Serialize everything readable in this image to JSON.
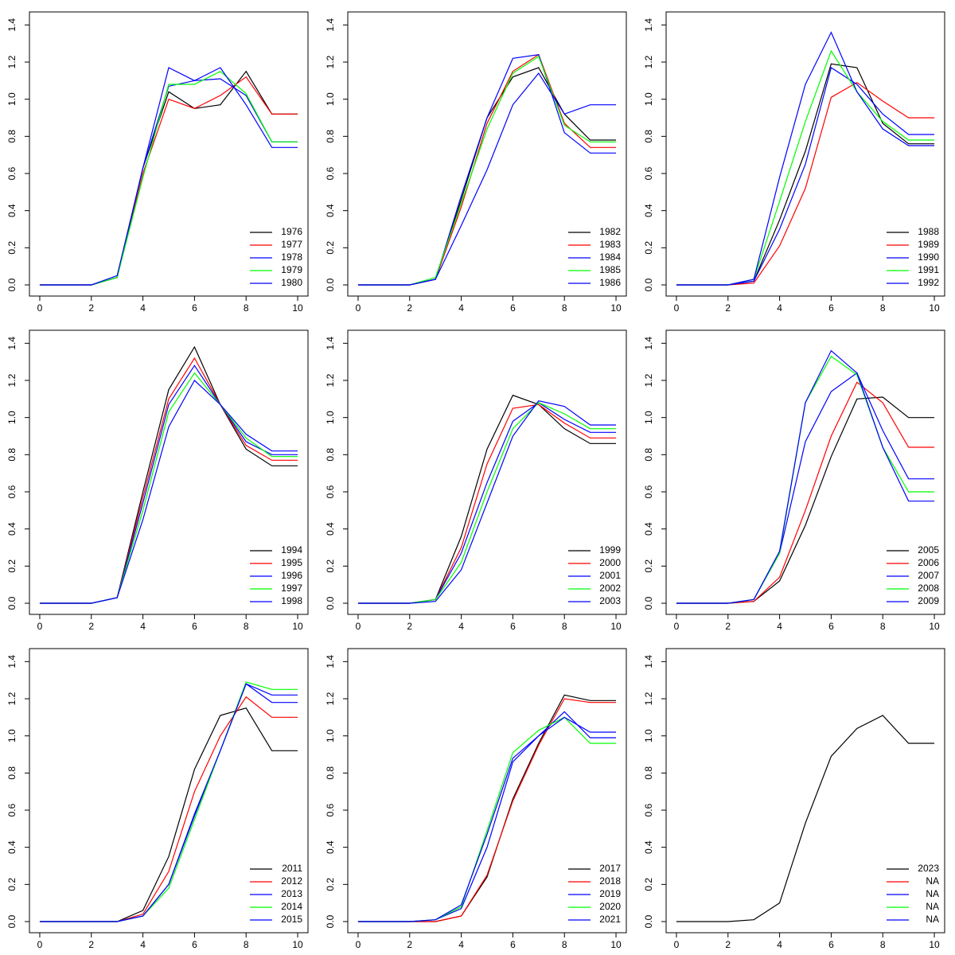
{
  "chart_data": [
    {
      "type": "line",
      "x": [
        0,
        1,
        2,
        3,
        4,
        5,
        6,
        7,
        8,
        9,
        10
      ],
      "xlim": [
        -0.4,
        10.4
      ],
      "ylim": [
        -0.06,
        1.47
      ],
      "xticks": [
        0,
        2,
        4,
        6,
        8,
        10
      ],
      "yticks": [
        {
          "value": 0,
          "label": "0.0"
        },
        0.2,
        0.4,
        0.6,
        0.8,
        {
          "value": 1,
          "label": "1.0"
        },
        1.2,
        1.4
      ],
      "legend": "bottom-right",
      "series": [
        {
          "name": "1976",
          "color": "#000000",
          "values": [
            0,
            0,
            0,
            0.04,
            0.63,
            1.04,
            0.95,
            0.97,
            1.15,
            0.92,
            0.92
          ]
        },
        {
          "name": "1977",
          "color": "#ff0000",
          "values": [
            0,
            0,
            0,
            0.04,
            0.6,
            1.0,
            0.95,
            1.02,
            1.12,
            0.92,
            0.92
          ]
        },
        {
          "name": "1978",
          "color": "#0000ff",
          "values": [
            0,
            0,
            0,
            0.04,
            0.63,
            1.07,
            1.1,
            1.11,
            1.02,
            0.77,
            0.77
          ]
        },
        {
          "name": "1979",
          "color": "#00ff00",
          "values": [
            0,
            0,
            0,
            0.04,
            0.58,
            1.08,
            1.08,
            1.15,
            1.03,
            0.77,
            0.77
          ]
        },
        {
          "name": "1980",
          "color": "#0000ff",
          "values": [
            0,
            0,
            0,
            0.05,
            0.63,
            1.17,
            1.1,
            1.17,
            0.97,
            0.74,
            0.74
          ]
        }
      ]
    },
    {
      "type": "line",
      "x": [
        0,
        1,
        2,
        3,
        4,
        5,
        6,
        7,
        8,
        9,
        10
      ],
      "xlim": [
        -0.4,
        10.4
      ],
      "ylim": [
        -0.06,
        1.47
      ],
      "xticks": [
        0,
        2,
        4,
        6,
        8,
        10
      ],
      "yticks": [
        {
          "value": 0,
          "label": "0.0"
        },
        0.2,
        0.4,
        0.6,
        0.8,
        {
          "value": 1,
          "label": "1.0"
        },
        1.2,
        1.4
      ],
      "legend": "bottom-right",
      "series": [
        {
          "name": "1982",
          "color": "#000000",
          "values": [
            0,
            0,
            0,
            0.03,
            0.46,
            0.9,
            1.12,
            1.17,
            0.92,
            0.78,
            0.78
          ]
        },
        {
          "name": "1983",
          "color": "#ff0000",
          "values": [
            0,
            0,
            0,
            0.03,
            0.42,
            0.87,
            1.15,
            1.24,
            0.87,
            0.74,
            0.74
          ]
        },
        {
          "name": "1984",
          "color": "#0000ff",
          "values": [
            0,
            0,
            0,
            0.03,
            0.48,
            0.9,
            1.22,
            1.24,
            0.82,
            0.71,
            0.71
          ]
        },
        {
          "name": "1985",
          "color": "#00ff00",
          "values": [
            0,
            0,
            0,
            0.04,
            0.44,
            0.84,
            1.14,
            1.23,
            0.86,
            0.77,
            0.77
          ]
        },
        {
          "name": "1986",
          "color": "#0000ff",
          "values": [
            0,
            0,
            0,
            0.03,
            0.32,
            0.62,
            0.97,
            1.14,
            0.92,
            0.97,
            0.97
          ]
        }
      ]
    },
    {
      "type": "line",
      "x": [
        0,
        1,
        2,
        3,
        4,
        5,
        6,
        7,
        8,
        9,
        10
      ],
      "xlim": [
        -0.4,
        10.4
      ],
      "ylim": [
        -0.06,
        1.47
      ],
      "xticks": [
        0,
        2,
        4,
        6,
        8,
        10
      ],
      "yticks": [
        {
          "value": 0,
          "label": "0.0"
        },
        0.2,
        0.4,
        0.6,
        0.8,
        {
          "value": 1,
          "label": "1.0"
        },
        1.2,
        1.4
      ],
      "legend": "bottom-right",
      "series": [
        {
          "name": "1988",
          "color": "#000000",
          "values": [
            0,
            0,
            0,
            0.02,
            0.35,
            0.72,
            1.19,
            1.17,
            0.87,
            0.76,
            0.76
          ]
        },
        {
          "name": "1989",
          "color": "#ff0000",
          "values": [
            0,
            0,
            0,
            0.01,
            0.21,
            0.52,
            1.01,
            1.09,
            0.99,
            0.9,
            0.9
          ]
        },
        {
          "name": "1990",
          "color": "#0000ff",
          "values": [
            0,
            0,
            0,
            0.02,
            0.3,
            0.65,
            1.17,
            1.08,
            0.92,
            0.81,
            0.81
          ]
        },
        {
          "name": "1991",
          "color": "#00ff00",
          "values": [
            0,
            0,
            0,
            0.03,
            0.45,
            0.88,
            1.26,
            1.04,
            0.88,
            0.78,
            0.78
          ]
        },
        {
          "name": "1992",
          "color": "#0000ff",
          "values": [
            0,
            0,
            0,
            0.03,
            0.58,
            1.08,
            1.36,
            1.04,
            0.84,
            0.75,
            0.75
          ]
        }
      ]
    },
    {
      "type": "line",
      "x": [
        0,
        1,
        2,
        3,
        4,
        5,
        6,
        7,
        8,
        9,
        10
      ],
      "xlim": [
        -0.4,
        10.4
      ],
      "ylim": [
        -0.06,
        1.47
      ],
      "xticks": [
        0,
        2,
        4,
        6,
        8,
        10
      ],
      "yticks": [
        {
          "value": 0,
          "label": "0.0"
        },
        0.2,
        0.4,
        0.6,
        0.8,
        {
          "value": 1,
          "label": "1.0"
        },
        1.2,
        1.4
      ],
      "legend": "bottom-right",
      "series": [
        {
          "name": "1994",
          "color": "#000000",
          "values": [
            0,
            0,
            0,
            0.03,
            0.6,
            1.15,
            1.38,
            1.07,
            0.83,
            0.74,
            0.74
          ]
        },
        {
          "name": "1995",
          "color": "#ff0000",
          "values": [
            0,
            0,
            0,
            0.03,
            0.57,
            1.1,
            1.32,
            1.07,
            0.85,
            0.77,
            0.77
          ]
        },
        {
          "name": "1996",
          "color": "#0000ff",
          "values": [
            0,
            0,
            0,
            0.03,
            0.54,
            1.07,
            1.28,
            1.07,
            0.87,
            0.8,
            0.8
          ]
        },
        {
          "name": "1997",
          "color": "#00ff00",
          "values": [
            0,
            0,
            0,
            0.03,
            0.5,
            1.03,
            1.24,
            1.07,
            0.89,
            0.79,
            0.79
          ]
        },
        {
          "name": "1998",
          "color": "#0000ff",
          "values": [
            0,
            0,
            0,
            0.03,
            0.45,
            0.95,
            1.2,
            1.07,
            0.91,
            0.82,
            0.82
          ]
        }
      ]
    },
    {
      "type": "line",
      "x": [
        0,
        1,
        2,
        3,
        4,
        5,
        6,
        7,
        8,
        9,
        10
      ],
      "xlim": [
        -0.4,
        10.4
      ],
      "ylim": [
        -0.06,
        1.47
      ],
      "xticks": [
        0,
        2,
        4,
        6,
        8,
        10
      ],
      "yticks": [
        {
          "value": 0,
          "label": "0.0"
        },
        0.2,
        0.4,
        0.6,
        0.8,
        {
          "value": 1,
          "label": "1.0"
        },
        1.2,
        1.4
      ],
      "legend": "bottom-right",
      "series": [
        {
          "name": "1999",
          "color": "#000000",
          "values": [
            0,
            0,
            0,
            0.02,
            0.36,
            0.83,
            1.12,
            1.07,
            0.94,
            0.86,
            0.86
          ]
        },
        {
          "name": "2000",
          "color": "#ff0000",
          "values": [
            0,
            0,
            0,
            0.02,
            0.3,
            0.75,
            1.05,
            1.07,
            0.97,
            0.89,
            0.89
          ]
        },
        {
          "name": "2001",
          "color": "#0000ff",
          "values": [
            0,
            0,
            0,
            0.02,
            0.27,
            0.65,
            0.98,
            1.08,
            0.99,
            0.92,
            0.92
          ]
        },
        {
          "name": "2002",
          "color": "#00ff00",
          "values": [
            0,
            0,
            0,
            0.02,
            0.22,
            0.6,
            0.94,
            1.08,
            1.02,
            0.94,
            0.94
          ]
        },
        {
          "name": "2003",
          "color": "#0000ff",
          "values": [
            0,
            0,
            0,
            0.01,
            0.18,
            0.54,
            0.9,
            1.09,
            1.06,
            0.96,
            0.96
          ]
        }
      ]
    },
    {
      "type": "line",
      "x": [
        0,
        1,
        2,
        3,
        4,
        5,
        6,
        7,
        8,
        9,
        10
      ],
      "xlim": [
        -0.4,
        10.4
      ],
      "ylim": [
        -0.06,
        1.47
      ],
      "xticks": [
        0,
        2,
        4,
        6,
        8,
        10
      ],
      "yticks": [
        {
          "value": 0,
          "label": "0.0"
        },
        0.2,
        0.4,
        0.6,
        0.8,
        {
          "value": 1,
          "label": "1.0"
        },
        1.2,
        1.4
      ],
      "legend": "bottom-right",
      "series": [
        {
          "name": "2005",
          "color": "#000000",
          "values": [
            0,
            0,
            0,
            0.01,
            0.12,
            0.42,
            0.79,
            1.1,
            1.11,
            1.0,
            1.0
          ]
        },
        {
          "name": "2006",
          "color": "#ff0000",
          "values": [
            0,
            0,
            0,
            0.01,
            0.14,
            0.5,
            0.9,
            1.19,
            1.08,
            0.84,
            0.84
          ]
        },
        {
          "name": "2007",
          "color": "#0000ff",
          "values": [
            0,
            0,
            0,
            0.02,
            0.27,
            0.87,
            1.14,
            1.24,
            0.93,
            0.67,
            0.67
          ]
        },
        {
          "name": "2008",
          "color": "#00ff00",
          "values": [
            0,
            0,
            0,
            0.02,
            0.27,
            1.08,
            1.33,
            1.23,
            0.84,
            0.6,
            0.6
          ]
        },
        {
          "name": "2009",
          "color": "#0000ff",
          "values": [
            0,
            0,
            0,
            0.02,
            0.28,
            1.08,
            1.36,
            1.24,
            0.84,
            0.55,
            0.55
          ]
        }
      ]
    },
    {
      "type": "line",
      "x": [
        0,
        1,
        2,
        3,
        4,
        5,
        6,
        7,
        8,
        9,
        10
      ],
      "xlim": [
        -0.4,
        10.4
      ],
      "ylim": [
        -0.06,
        1.47
      ],
      "xticks": [
        0,
        2,
        4,
        6,
        8,
        10
      ],
      "yticks": [
        {
          "value": 0,
          "label": "0.0"
        },
        0.2,
        0.4,
        0.6,
        0.8,
        {
          "value": 1,
          "label": "1.0"
        },
        1.2,
        1.4
      ],
      "legend": "bottom-right",
      "series": [
        {
          "name": "2011",
          "color": "#000000",
          "values": [
            0,
            0,
            0,
            0,
            0.06,
            0.35,
            0.82,
            1.11,
            1.15,
            0.92,
            0.92
          ]
        },
        {
          "name": "2012",
          "color": "#ff0000",
          "values": [
            0,
            0,
            0,
            0,
            0.04,
            0.27,
            0.7,
            1.0,
            1.21,
            1.1,
            1.1
          ]
        },
        {
          "name": "2013",
          "color": "#0000ff",
          "values": [
            0,
            0,
            0,
            0,
            0.03,
            0.2,
            0.57,
            0.92,
            1.28,
            1.18,
            1.18
          ]
        },
        {
          "name": "2014",
          "color": "#00ff00",
          "values": [
            0,
            0,
            0,
            0,
            0.03,
            0.18,
            0.55,
            0.92,
            1.29,
            1.25,
            1.25
          ]
        },
        {
          "name": "2015",
          "color": "#0000ff",
          "values": [
            0,
            0,
            0,
            0,
            0.03,
            0.2,
            0.58,
            0.92,
            1.28,
            1.22,
            1.22
          ]
        }
      ]
    },
    {
      "type": "line",
      "x": [
        0,
        1,
        2,
        3,
        4,
        5,
        6,
        7,
        8,
        9,
        10
      ],
      "xlim": [
        -0.4,
        10.4
      ],
      "ylim": [
        -0.06,
        1.47
      ],
      "xticks": [
        0,
        2,
        4,
        6,
        8,
        10
      ],
      "yticks": [
        {
          "value": 0,
          "label": "0.0"
        },
        0.2,
        0.4,
        0.6,
        0.8,
        {
          "value": 1,
          "label": "1.0"
        },
        1.2,
        1.4
      ],
      "legend": "bottom-right",
      "series": [
        {
          "name": "2017",
          "color": "#000000",
          "values": [
            0,
            0,
            0,
            0,
            0.03,
            0.24,
            0.66,
            0.96,
            1.22,
            1.19,
            1.19
          ]
        },
        {
          "name": "2018",
          "color": "#ff0000",
          "values": [
            0,
            0,
            0,
            0,
            0.03,
            0.25,
            0.65,
            0.95,
            1.2,
            1.18,
            1.18
          ]
        },
        {
          "name": "2019",
          "color": "#0000ff",
          "values": [
            0,
            0,
            0,
            0.01,
            0.07,
            0.4,
            0.86,
            1.0,
            1.13,
            0.99,
            0.99
          ]
        },
        {
          "name": "2020",
          "color": "#00ff00",
          "values": [
            0,
            0,
            0,
            0.01,
            0.08,
            0.49,
            0.91,
            1.03,
            1.1,
            0.96,
            0.96
          ]
        },
        {
          "name": "2021",
          "color": "#0000ff",
          "values": [
            0,
            0,
            0,
            0.01,
            0.09,
            0.47,
            0.88,
            1.0,
            1.1,
            1.02,
            1.02
          ]
        }
      ]
    },
    {
      "type": "line",
      "x": [
        0,
        1,
        2,
        3,
        4,
        5,
        6,
        7,
        8,
        9,
        10
      ],
      "xlim": [
        -0.4,
        10.4
      ],
      "ylim": [
        -0.06,
        1.47
      ],
      "xticks": [
        0,
        2,
        4,
        6,
        8,
        10
      ],
      "yticks": [
        {
          "value": 0,
          "label": "0.0"
        },
        0.2,
        0.4,
        0.6,
        0.8,
        {
          "value": 1,
          "label": "1.0"
        },
        1.2,
        1.4
      ],
      "legend": "bottom-right",
      "series": [
        {
          "name": "2023",
          "color": "#000000",
          "values": [
            0,
            0,
            0,
            0.01,
            0.1,
            0.53,
            0.89,
            1.04,
            1.11,
            0.96,
            0.96
          ]
        },
        {
          "name": "NA",
          "color": "#ff0000",
          "values": [
            null,
            null,
            null,
            null,
            null,
            null,
            null,
            null,
            null,
            null,
            null
          ]
        },
        {
          "name": "NA",
          "color": "#0000ff",
          "values": [
            null,
            null,
            null,
            null,
            null,
            null,
            null,
            null,
            null,
            null,
            null
          ]
        },
        {
          "name": "NA",
          "color": "#00ff00",
          "values": [
            null,
            null,
            null,
            null,
            null,
            null,
            null,
            null,
            null,
            null,
            null
          ]
        },
        {
          "name": "NA",
          "color": "#0000ff",
          "values": [
            null,
            null,
            null,
            null,
            null,
            null,
            null,
            null,
            null,
            null,
            null
          ]
        }
      ]
    }
  ]
}
